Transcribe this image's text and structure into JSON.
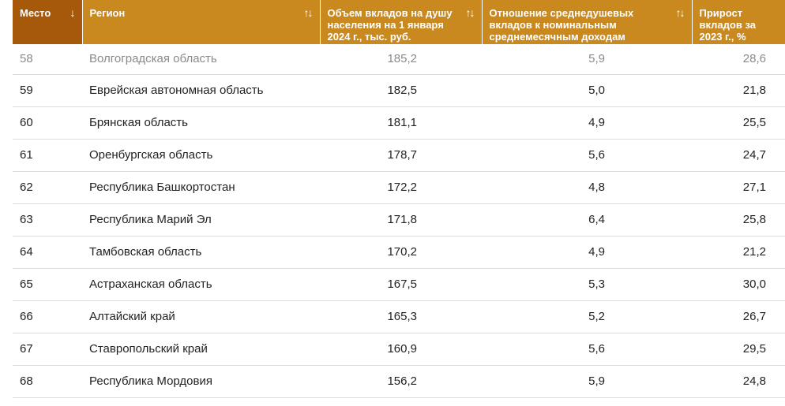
{
  "table": {
    "headers": {
      "place": "Место",
      "region": "Регион",
      "deposit": "Объем вкладов на душу населения на 1 января 2024 г., тыс. руб.",
      "ratio": "Отношение среднедушевых вкладов к номинальным среднемесячным доходам",
      "growth": "Прирост вкладов за 2023 г., %"
    },
    "sort_icons": {
      "sorted_desc": "↓",
      "sortable": "↑↓"
    },
    "header_colors": {
      "accent": "#c9891e",
      "sorted": "#a7590b"
    },
    "rows": [
      {
        "place": "58",
        "region": "Волгоградская область",
        "deposit": "185,2",
        "ratio": "5,9",
        "growth": "28,6"
      },
      {
        "place": "59",
        "region": "Еврейская автономная область",
        "deposit": "182,5",
        "ratio": "5,0",
        "growth": "21,8"
      },
      {
        "place": "60",
        "region": "Брянская область",
        "deposit": "181,1",
        "ratio": "4,9",
        "growth": "25,5"
      },
      {
        "place": "61",
        "region": "Оренбургская область",
        "deposit": "178,7",
        "ratio": "5,6",
        "growth": "24,7"
      },
      {
        "place": "62",
        "region": "Республика Башкортостан",
        "deposit": "172,2",
        "ratio": "4,8",
        "growth": "27,1"
      },
      {
        "place": "63",
        "region": "Республика Марий Эл",
        "deposit": "171,8",
        "ratio": "6,4",
        "growth": "25,8"
      },
      {
        "place": "64",
        "region": "Тамбовская область",
        "deposit": "170,2",
        "ratio": "4,9",
        "growth": "21,2"
      },
      {
        "place": "65",
        "region": "Астраханская область",
        "deposit": "167,5",
        "ratio": "5,3",
        "growth": "30,0"
      },
      {
        "place": "66",
        "region": "Алтайский край",
        "deposit": "165,3",
        "ratio": "5,2",
        "growth": "26,7"
      },
      {
        "place": "67",
        "region": "Ставропольский край",
        "deposit": "160,9",
        "ratio": "5,6",
        "growth": "29,5"
      },
      {
        "place": "68",
        "region": "Республика Мордовия",
        "deposit": "156,2",
        "ratio": "5,9",
        "growth": "24,8"
      }
    ]
  }
}
